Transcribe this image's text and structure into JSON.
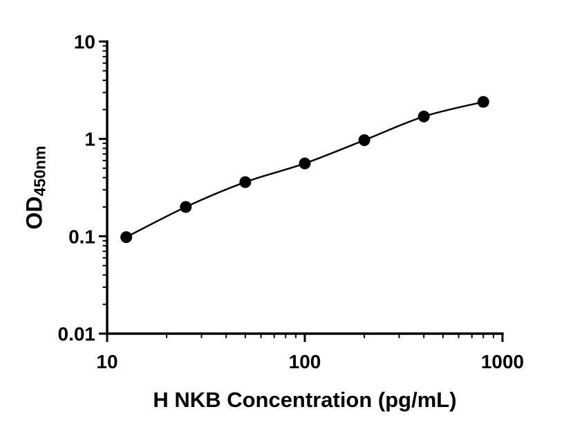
{
  "chart_data": {
    "type": "scatter",
    "title": "",
    "xlabel": "H NKB Concentration (pg/mL)",
    "ylabel_main": "OD",
    "ylabel_sub": "450nm",
    "xscale": "log",
    "yscale": "log",
    "xlim": [
      10,
      1000
    ],
    "ylim": [
      0.01,
      10
    ],
    "x_major_ticks": [
      10,
      100,
      1000
    ],
    "x_tick_labels": [
      "10",
      "100",
      "1000"
    ],
    "y_major_ticks": [
      10,
      1,
      0.1,
      0.01
    ],
    "y_tick_labels": [
      "10",
      "1",
      "0.1",
      "0.01"
    ],
    "x": [
      12.5,
      25,
      50,
      100,
      200,
      400,
      800
    ],
    "y": [
      0.098,
      0.2,
      0.36,
      0.56,
      0.97,
      1.7,
      2.4
    ],
    "marker": "filled-circle",
    "line": "smooth-fit",
    "grid": false,
    "legend": null,
    "colors": {
      "axis": "#000000",
      "marker": "#000000",
      "curve": "#000000",
      "background": "#ffffff"
    }
  }
}
